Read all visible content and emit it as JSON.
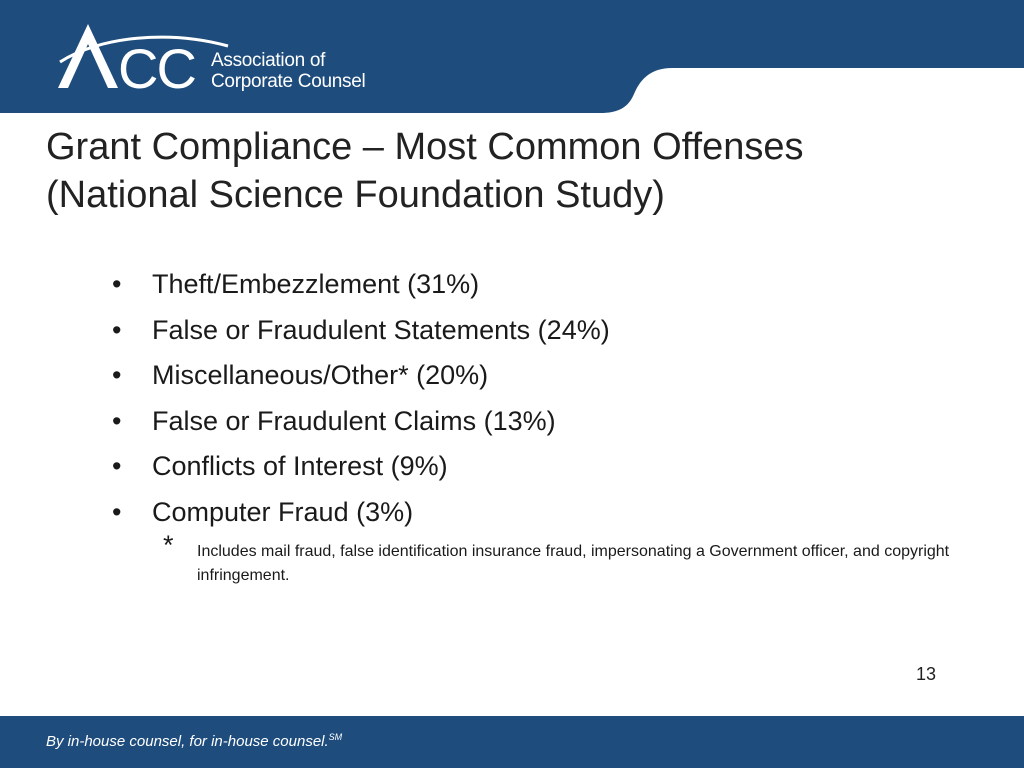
{
  "brand": {
    "logo_mark": "ACC",
    "org_line1": "Association of",
    "org_line2": "Corporate Counsel",
    "header_color": "#1e4d7d",
    "footer_color": "#1e4d7d"
  },
  "slide": {
    "title_line1": "Grant Compliance – Most Common Offenses",
    "title_line2": "(National Science Foundation Study)",
    "bullet_symbol": "•",
    "bullets": [
      "Theft/Embezzlement (31%)",
      "False or Fraudulent Statements (24%)",
      "Miscellaneous/Other* (20%)",
      "False or Fraudulent Claims (13%)",
      "Conflicts of Interest (9%)",
      "Computer Fraud (3%)"
    ],
    "footnote_marker": "*",
    "footnote_text": "Includes mail fraud, false identification insurance fraud, impersonating a Government officer, and copyright infringement.",
    "page_number": "13"
  },
  "footer": {
    "tagline": "By in-house counsel, for in-house counsel.",
    "mark": "SM"
  }
}
